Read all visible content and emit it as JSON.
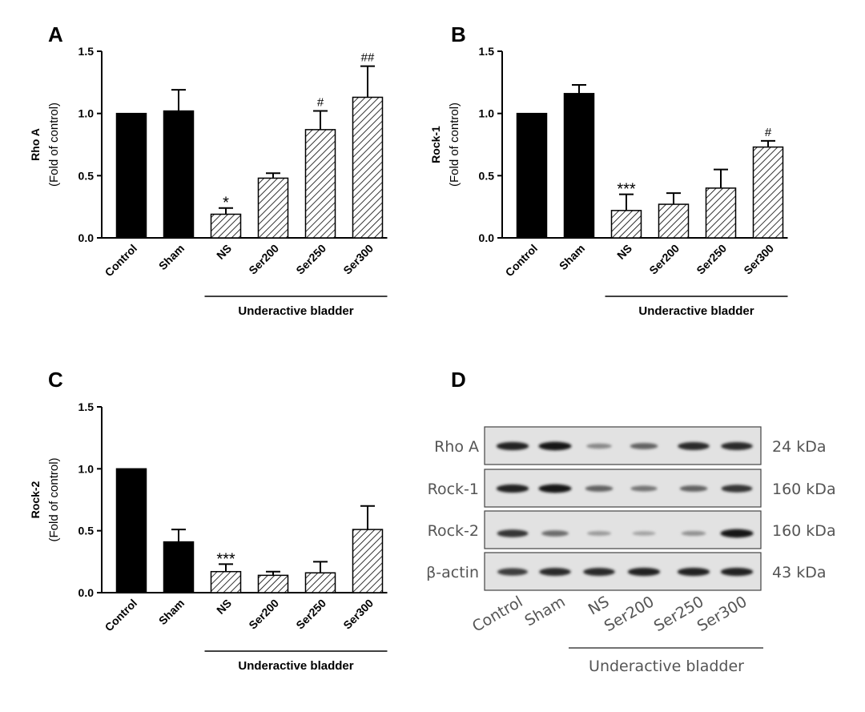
{
  "panels": [
    {
      "letter": "A",
      "ylabel_main": "Rho A",
      "ylabel_sub": "(Fold of control)",
      "group_label": "Underactive bladder",
      "chart_data": {
        "type": "bar",
        "categories": [
          "Control",
          "Sham",
          "NS",
          "Ser200",
          "Ser250",
          "Ser300"
        ],
        "values": [
          1.0,
          1.02,
          0.19,
          0.48,
          0.87,
          1.13
        ],
        "errors": [
          0,
          0.17,
          0.05,
          0.04,
          0.15,
          0.25
        ],
        "annotations": [
          "",
          "",
          "*",
          "",
          "#",
          "##"
        ],
        "fill": [
          "solid",
          "solid",
          "hatch",
          "hatch",
          "hatch",
          "hatch"
        ],
        "yticks": [
          "0.0",
          "0.5",
          "1.0",
          "1.5"
        ],
        "ylim": [
          0,
          1.5
        ]
      }
    },
    {
      "letter": "B",
      "ylabel_main": "Rock-1",
      "ylabel_sub": "(Fold of control)",
      "group_label": "Underactive bladder",
      "chart_data": {
        "type": "bar",
        "categories": [
          "Control",
          "Sham",
          "NS",
          "Ser200",
          "Ser250",
          "Ser300"
        ],
        "values": [
          1.0,
          1.16,
          0.22,
          0.27,
          0.4,
          0.73
        ],
        "errors": [
          0,
          0.07,
          0.13,
          0.09,
          0.15,
          0.05
        ],
        "annotations": [
          "",
          "",
          "***",
          "",
          "",
          "#"
        ],
        "fill": [
          "solid",
          "solid",
          "hatch",
          "hatch",
          "hatch",
          "hatch"
        ],
        "yticks": [
          "0.0",
          "0.5",
          "1.0",
          "1.5"
        ],
        "ylim": [
          0,
          1.5
        ]
      }
    },
    {
      "letter": "C",
      "ylabel_main": "Rock-2",
      "ylabel_sub": "(Fold of control)",
      "group_label": "Underactive bladder",
      "chart_data": {
        "type": "bar",
        "categories": [
          "Control",
          "Sham",
          "NS",
          "Ser200",
          "Ser250",
          "Ser300"
        ],
        "values": [
          1.0,
          0.41,
          0.17,
          0.14,
          0.16,
          0.51
        ],
        "errors": [
          0,
          0.1,
          0.06,
          0.03,
          0.09,
          0.19
        ],
        "annotations": [
          "",
          "",
          "***",
          "",
          "",
          ""
        ],
        "fill": [
          "solid",
          "solid",
          "hatch",
          "hatch",
          "hatch",
          "hatch"
        ],
        "yticks": [
          "0.0",
          "0.5",
          "1.0",
          "1.5"
        ],
        "ylim": [
          0,
          1.5
        ]
      }
    }
  ],
  "western_blot": {
    "letter": "D",
    "rows": [
      {
        "label": "Rho A",
        "size": "24 kDa",
        "intensity": [
          0.9,
          0.95,
          0.35,
          0.55,
          0.85,
          0.85
        ]
      },
      {
        "label": "Rock-1",
        "size": "160 kDa",
        "intensity": [
          0.9,
          0.95,
          0.55,
          0.45,
          0.55,
          0.8
        ]
      },
      {
        "label": "Rock-2",
        "size": "160 kDa",
        "intensity": [
          0.8,
          0.5,
          0.25,
          0.2,
          0.3,
          0.95
        ]
      },
      {
        "label": "β-actin",
        "size": "43 kDa",
        "intensity": [
          0.75,
          0.85,
          0.85,
          0.9,
          0.9,
          0.9
        ]
      }
    ],
    "lanes": [
      "Control",
      "Sham",
      "NS",
      "Ser200",
      "Ser250",
      "Ser300"
    ],
    "group_label": "Underactive bladder"
  }
}
